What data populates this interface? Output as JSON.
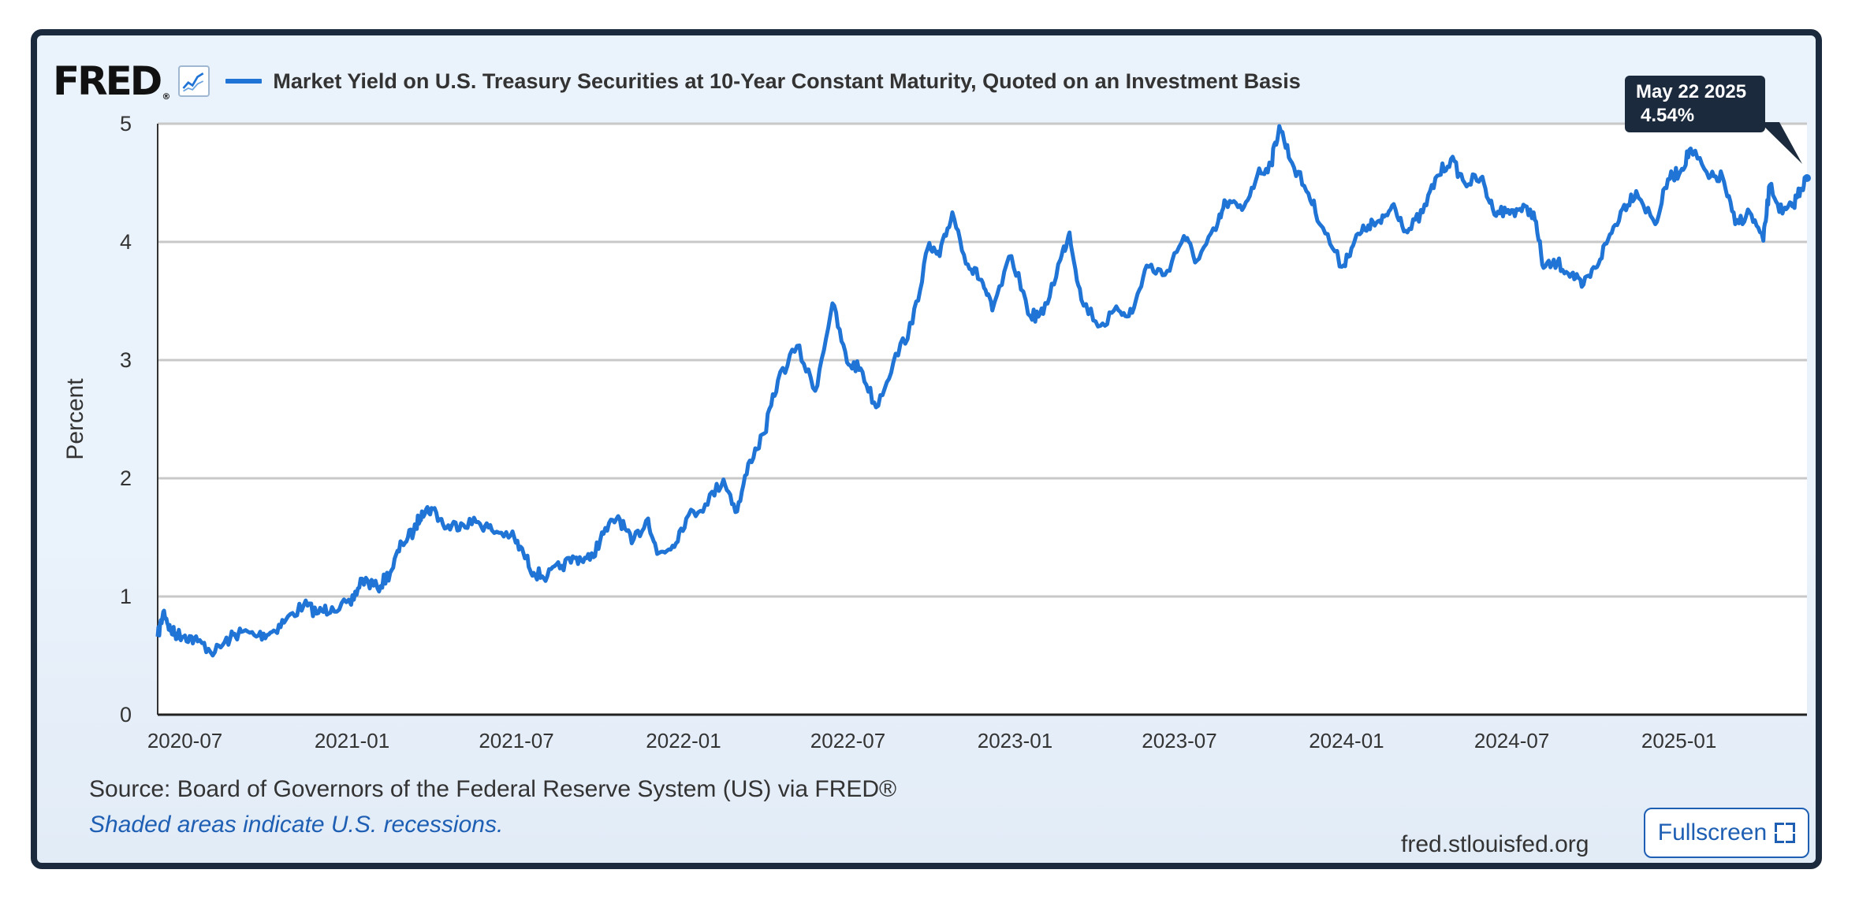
{
  "header": {
    "logo_text": "FRED",
    "logo_reg": "®",
    "series_title": "Market Yield on U.S. Treasury Securities at 10-Year Constant Maturity, Quoted on an Investment Basis"
  },
  "tooltip": {
    "date": "May 22 2025",
    "value": "4.54%"
  },
  "footer": {
    "source": "Source: Board of Governors of the Federal Reserve System (US) via FRED®",
    "recession_note": "Shaded areas indicate U.S. recessions.",
    "site": "fred.stlouisfed.org",
    "fullscreen_label": "Fullscreen"
  },
  "colors": {
    "series": "#1f74d6",
    "frame": "#1b2a3d",
    "link": "#1e5fb4",
    "grid": "#c8c8c8"
  },
  "chart_data": {
    "type": "line",
    "ylabel": "Percent",
    "ylim": [
      0,
      5
    ],
    "y_ticks": [
      0,
      1,
      2,
      3,
      4,
      5
    ],
    "xlim": [
      "2020-06-01",
      "2025-05-22"
    ],
    "x_ticks": [
      "2020-07",
      "2021-01",
      "2021-07",
      "2022-01",
      "2022-07",
      "2023-01",
      "2023-07",
      "2024-01",
      "2024-07",
      "2025-01"
    ],
    "grid": true,
    "series": [
      {
        "values": [
          [
            "2020-06-01",
            0.66
          ],
          [
            "2020-06-08",
            0.88
          ],
          [
            "2020-06-15",
            0.71
          ],
          [
            "2020-06-22",
            0.68
          ],
          [
            "2020-07-01",
            0.67
          ],
          [
            "2020-07-15",
            0.62
          ],
          [
            "2020-08-03",
            0.53
          ],
          [
            "2020-08-20",
            0.65
          ],
          [
            "2020-09-01",
            0.7
          ],
          [
            "2020-09-20",
            0.67
          ],
          [
            "2020-10-05",
            0.7
          ],
          [
            "2020-10-20",
            0.8
          ],
          [
            "2020-11-09",
            0.93
          ],
          [
            "2020-11-25",
            0.86
          ],
          [
            "2020-12-10",
            0.91
          ],
          [
            "2020-12-31",
            0.93
          ],
          [
            "2021-01-12",
            1.15
          ],
          [
            "2021-01-29",
            1.07
          ],
          [
            "2021-02-12",
            1.2
          ],
          [
            "2021-02-25",
            1.45
          ],
          [
            "2021-03-10",
            1.55
          ],
          [
            "2021-03-19",
            1.72
          ],
          [
            "2021-03-31",
            1.74
          ],
          [
            "2021-04-15",
            1.58
          ],
          [
            "2021-05-01",
            1.62
          ],
          [
            "2021-05-20",
            1.63
          ],
          [
            "2021-06-04",
            1.56
          ],
          [
            "2021-06-25",
            1.52
          ],
          [
            "2021-07-09",
            1.36
          ],
          [
            "2021-07-20",
            1.2
          ],
          [
            "2021-08-04",
            1.17
          ],
          [
            "2021-08-20",
            1.26
          ],
          [
            "2021-09-05",
            1.33
          ],
          [
            "2021-09-20",
            1.31
          ],
          [
            "2021-10-05",
            1.53
          ],
          [
            "2021-10-21",
            1.68
          ],
          [
            "2021-11-05",
            1.45
          ],
          [
            "2021-11-23",
            1.66
          ],
          [
            "2021-12-03",
            1.36
          ],
          [
            "2021-12-20",
            1.43
          ],
          [
            "2022-01-04",
            1.66
          ],
          [
            "2022-01-25",
            1.78
          ],
          [
            "2022-02-14",
            1.99
          ],
          [
            "2022-03-01",
            1.72
          ],
          [
            "2022-03-15",
            2.15
          ],
          [
            "2022-03-31",
            2.38
          ],
          [
            "2022-04-15",
            2.83
          ],
          [
            "2022-05-06",
            3.12
          ],
          [
            "2022-05-26",
            2.74
          ],
          [
            "2022-06-14",
            3.48
          ],
          [
            "2022-06-30",
            2.98
          ],
          [
            "2022-07-15",
            2.93
          ],
          [
            "2022-08-01",
            2.6
          ],
          [
            "2022-08-20",
            2.98
          ],
          [
            "2022-09-10",
            3.31
          ],
          [
            "2022-09-27",
            3.95
          ],
          [
            "2022-10-10",
            3.88
          ],
          [
            "2022-10-24",
            4.25
          ],
          [
            "2022-11-10",
            3.81
          ],
          [
            "2022-11-25",
            3.68
          ],
          [
            "2022-12-07",
            3.42
          ],
          [
            "2022-12-28",
            3.88
          ],
          [
            "2023-01-18",
            3.37
          ],
          [
            "2023-02-01",
            3.39
          ],
          [
            "2023-02-20",
            3.85
          ],
          [
            "2023-03-02",
            4.08
          ],
          [
            "2023-03-15",
            3.51
          ],
          [
            "2023-04-05",
            3.29
          ],
          [
            "2023-04-25",
            3.42
          ],
          [
            "2023-05-10",
            3.4
          ],
          [
            "2023-05-26",
            3.8
          ],
          [
            "2023-06-15",
            3.72
          ],
          [
            "2023-07-06",
            4.05
          ],
          [
            "2023-07-20",
            3.84
          ],
          [
            "2023-08-10",
            4.1
          ],
          [
            "2023-08-21",
            4.34
          ],
          [
            "2023-09-08",
            4.27
          ],
          [
            "2023-09-25",
            4.57
          ],
          [
            "2023-10-10",
            4.66
          ],
          [
            "2023-10-19",
            4.98
          ],
          [
            "2023-11-02",
            4.67
          ],
          [
            "2023-11-20",
            4.41
          ],
          [
            "2023-12-06",
            4.12
          ],
          [
            "2023-12-27",
            3.79
          ],
          [
            "2024-01-10",
            4.01
          ],
          [
            "2024-01-25",
            4.14
          ],
          [
            "2024-02-08",
            4.16
          ],
          [
            "2024-02-22",
            4.32
          ],
          [
            "2024-03-08",
            4.08
          ],
          [
            "2024-03-25",
            4.25
          ],
          [
            "2024-04-10",
            4.56
          ],
          [
            "2024-04-25",
            4.7
          ],
          [
            "2024-05-10",
            4.5
          ],
          [
            "2024-05-28",
            4.54
          ],
          [
            "2024-06-10",
            4.28
          ],
          [
            "2024-06-25",
            4.25
          ],
          [
            "2024-07-10",
            4.28
          ],
          [
            "2024-07-25",
            4.25
          ],
          [
            "2024-08-05",
            3.78
          ],
          [
            "2024-08-20",
            3.82
          ],
          [
            "2024-09-05",
            3.73
          ],
          [
            "2024-09-16",
            3.62
          ],
          [
            "2024-10-01",
            3.78
          ],
          [
            "2024-10-15",
            4.02
          ],
          [
            "2024-10-31",
            4.28
          ],
          [
            "2024-11-15",
            4.43
          ],
          [
            "2024-12-06",
            4.15
          ],
          [
            "2024-12-20",
            4.53
          ],
          [
            "2025-01-03",
            4.6
          ],
          [
            "2025-01-14",
            4.79
          ],
          [
            "2025-02-03",
            4.54
          ],
          [
            "2025-02-18",
            4.55
          ],
          [
            "2025-03-04",
            4.15
          ],
          [
            "2025-03-20",
            4.25
          ],
          [
            "2025-04-04",
            4.01
          ],
          [
            "2025-04-11",
            4.48
          ],
          [
            "2025-04-25",
            4.24
          ],
          [
            "2025-05-06",
            4.3
          ],
          [
            "2025-05-15",
            4.45
          ],
          [
            "2025-05-22",
            4.54
          ]
        ]
      }
    ]
  }
}
